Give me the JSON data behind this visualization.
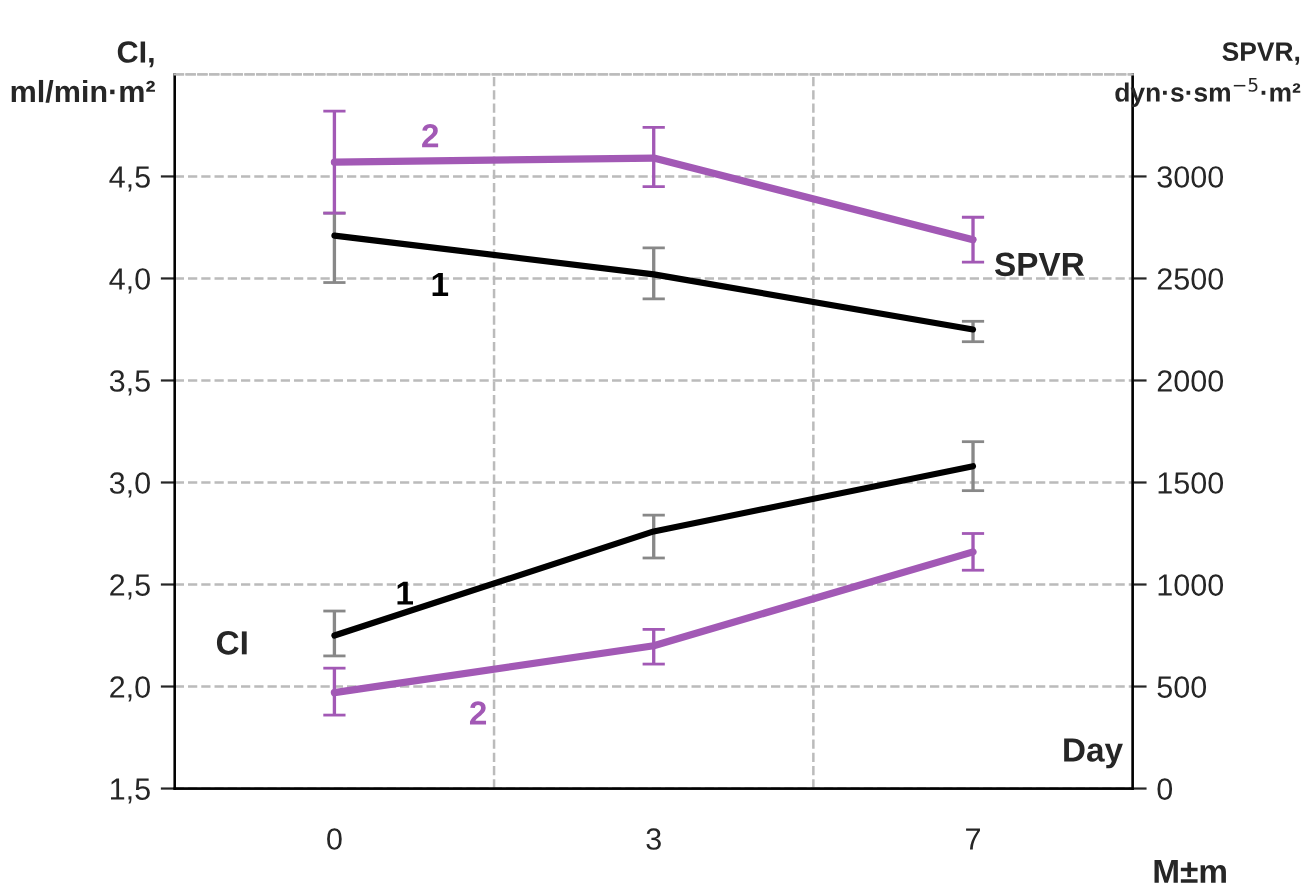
{
  "chart_data": {
    "type": "line",
    "categories": [
      "0",
      "3",
      "7"
    ],
    "ylabel": "CI,\nml/min·m²",
    "y2label": "SPVR,\ndyn·s·sm$^{−5}$·m²",
    "ylim": [
      1.5,
      5.0
    ],
    "yticks": [
      {
        "value": 1.5,
        "label": "1,5"
      },
      {
        "value": 2.0,
        "label": "2,0"
      },
      {
        "value": 2.5,
        "label": "2,5"
      },
      {
        "value": 3.0,
        "label": "3,0"
      },
      {
        "value": 3.5,
        "label": "3,5"
      },
      {
        "value": 4.0,
        "label": "4,0"
      },
      {
        "value": 4.5,
        "label": "4,5"
      }
    ],
    "y2lim": [
      0,
      3500
    ],
    "y2ticks": [
      0,
      500,
      1000,
      1500,
      2000,
      2500,
      3000
    ],
    "grid": true,
    "legend": false,
    "marker": "none",
    "line_style": "solid",
    "series": [
      {
        "name": "1",
        "color": "#000000",
        "axis": "y2",
        "values": [
          2710,
          2520,
          2250
        ],
        "errors": [
          [
            2480,
            2820
          ],
          [
            2400,
            2650
          ],
          [
            2190,
            2290
          ]
        ]
      },
      {
        "name": "2",
        "color": "#a259b5",
        "axis": "y2",
        "values": [
          3070,
          3090,
          2690
        ],
        "errors": [
          [
            2820,
            3320
          ],
          [
            2950,
            3240
          ],
          [
            2580,
            2800
          ]
        ]
      },
      {
        "name": "1",
        "color": "#000000",
        "values": [
          2.25,
          2.76,
          3.08
        ],
        "errors": [
          [
            2.15,
            2.37
          ],
          [
            2.63,
            2.84
          ],
          [
            2.96,
            3.2
          ]
        ]
      },
      {
        "name": "2",
        "color": "#a259b5",
        "values": [
          1.97,
          2.2,
          2.66
        ],
        "errors": [
          [
            1.86,
            2.09
          ],
          [
            2.11,
            2.28
          ],
          [
            2.57,
            2.75
          ]
        ]
      }
    ],
    "annotations": [
      "SPVR",
      "CI",
      "Day",
      "M±m"
    ]
  }
}
